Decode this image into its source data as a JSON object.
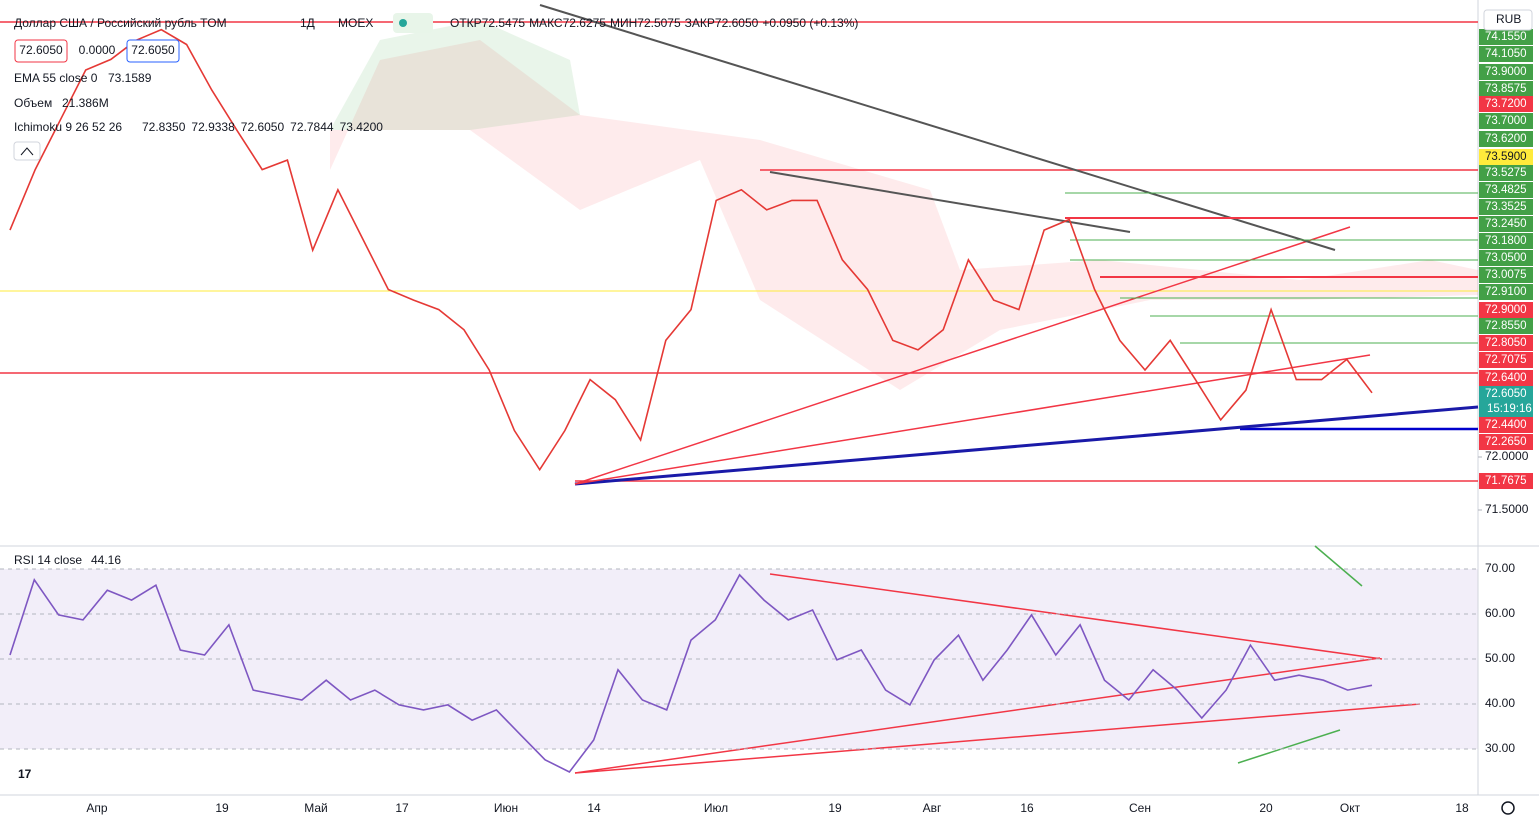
{
  "header": {
    "symbol": "Доллар США / Российский рубль TOM",
    "interval": "1Д",
    "exchange": "MOEX",
    "ohlc": [
      {
        "label": "ОТКР",
        "value": "72.5475"
      },
      {
        "label": "МАКС",
        "value": "72.6275"
      },
      {
        "label": "МИН",
        "value": "72.5075"
      },
      {
        "label": "ЗАКР",
        "value": "72.6050"
      }
    ],
    "change": "+0.0950 (+0.13%)",
    "boxes": [
      "72.6050",
      "0.0000",
      "72.6050"
    ],
    "ema": {
      "label": "EMA 55 close 0",
      "value": "73.1589"
    },
    "volume": {
      "label": "Объем",
      "value": "21.386M"
    },
    "ichimoku": {
      "label": "Ichimoku 9 26 52 26",
      "values": [
        "72.8350",
        "72.9338",
        "72.6050",
        "72.7844",
        "73.4200"
      ]
    },
    "rsi": {
      "label": "RSI 14 close",
      "value": "44.16"
    },
    "currency": "RUB",
    "countdown": "15:19:16",
    "price_labels": [
      {
        "label": "74.1550",
        "color": "#43a047"
      },
      {
        "label": "74.1050",
        "color": "#43a047"
      },
      {
        "label": "73.9000",
        "color": "#43a047"
      },
      {
        "label": "73.8575",
        "color": "#43a047"
      },
      {
        "label": "73.7200",
        "color": "#f23645"
      },
      {
        "label": "73.7000",
        "color": "#43a047"
      },
      {
        "label": "73.6200",
        "color": "#43a047"
      },
      {
        "label": "73.5900",
        "color": "#ffeb3b"
      },
      {
        "label": "73.5275",
        "color": "#43a047"
      },
      {
        "label": "73.4825",
        "color": "#43a047"
      },
      {
        "label": "73.3525",
        "color": "#43a047"
      },
      {
        "label": "73.2450",
        "color": "#43a047"
      },
      {
        "label": "73.1800",
        "color": "#43a047"
      },
      {
        "label": "73.0500",
        "color": "#43a047"
      },
      {
        "label": "73.0075",
        "color": "#43a047"
      },
      {
        "label": "72.9100",
        "color": "#43a047"
      },
      {
        "label": "72.9000",
        "color": "#f23645"
      },
      {
        "label": "72.8550",
        "color": "#43a047"
      },
      {
        "label": "72.8050",
        "color": "#f23645"
      },
      {
        "label": "72.7075",
        "color": "#f23645"
      },
      {
        "label": "72.6400",
        "color": "#f23645"
      },
      {
        "label": "72.6050",
        "color": "#26a69a"
      },
      {
        "label": "72.4400",
        "color": "#f23645"
      },
      {
        "label": "72.2650",
        "color": "#f23645"
      },
      {
        "label": "71.7675",
        "color": "#f23645"
      }
    ],
    "time_labels": [
      "Апр",
      "19",
      "Май",
      "17",
      "Июн",
      "14",
      "Июл",
      "19",
      "Авг",
      "16",
      "Сен",
      "20",
      "Окт",
      "18"
    ]
  },
  "chart_data": [
    {
      "type": "line",
      "series": [
        {
          "color": "#e53935",
          "values": [
            74.14,
            74.71,
            75.18,
            75.65,
            75.75,
            75.93,
            76.03,
            75.89,
            75.46,
            75.08,
            74.71,
            74.8,
            73.95,
            74.52,
            74.05,
            73.58,
            73.48,
            73.39,
            73.2,
            72.82,
            72.25,
            71.88,
            72.25,
            72.73,
            72.54,
            72.16,
            73.1,
            73.39,
            74.42,
            74.52,
            74.33,
            74.42,
            74.42,
            73.86,
            73.58,
            73.1,
            73.01,
            73.2,
            73.86,
            73.48,
            73.39,
            74.14,
            74.24,
            73.58,
            73.1,
            72.82,
            73.1,
            72.73,
            72.35,
            72.63,
            73.39,
            72.73,
            72.73,
            72.92,
            72.605
          ]
        }
      ],
      "ylim": [
        71.17,
        76.31
      ],
      "yticks": [
        {
          "value": 71.5,
          "label": "71.5000"
        },
        {
          "value": 72,
          "label": "72.0000"
        }
      ]
    },
    {
      "type": "line",
      "series": [
        {
          "color": "#7e57c2",
          "values": [
            50.9,
            67.6,
            59.8,
            58.7,
            65.3,
            63.1,
            66.4,
            52.0,
            50.9,
            57.6,
            43.1,
            42.0,
            40.9,
            45.3,
            40.9,
            43.1,
            39.8,
            38.7,
            39.8,
            36.4,
            38.7,
            33.1,
            27.6,
            24.9,
            32.0,
            47.6,
            40.9,
            38.7,
            54.2,
            58.7,
            68.7,
            63.1,
            58.7,
            60.9,
            49.8,
            52.0,
            43.1,
            39.8,
            49.8,
            55.3,
            45.3,
            52.0,
            59.8,
            50.9,
            57.6,
            45.3,
            40.9,
            47.6,
            43.1,
            36.9,
            43.1,
            53.1,
            45.3,
            46.4,
            45.3,
            43.1,
            44.16
          ]
        }
      ],
      "ylim": [
        20.9,
        74.67
      ],
      "yticks": [
        {
          "value": 30,
          "label": "30.00"
        },
        {
          "value": 40,
          "label": "40.00"
        },
        {
          "value": 50,
          "label": "50.00"
        },
        {
          "value": 60,
          "label": "60.00"
        },
        {
          "value": 70,
          "label": "70.00"
        }
      ]
    }
  ]
}
